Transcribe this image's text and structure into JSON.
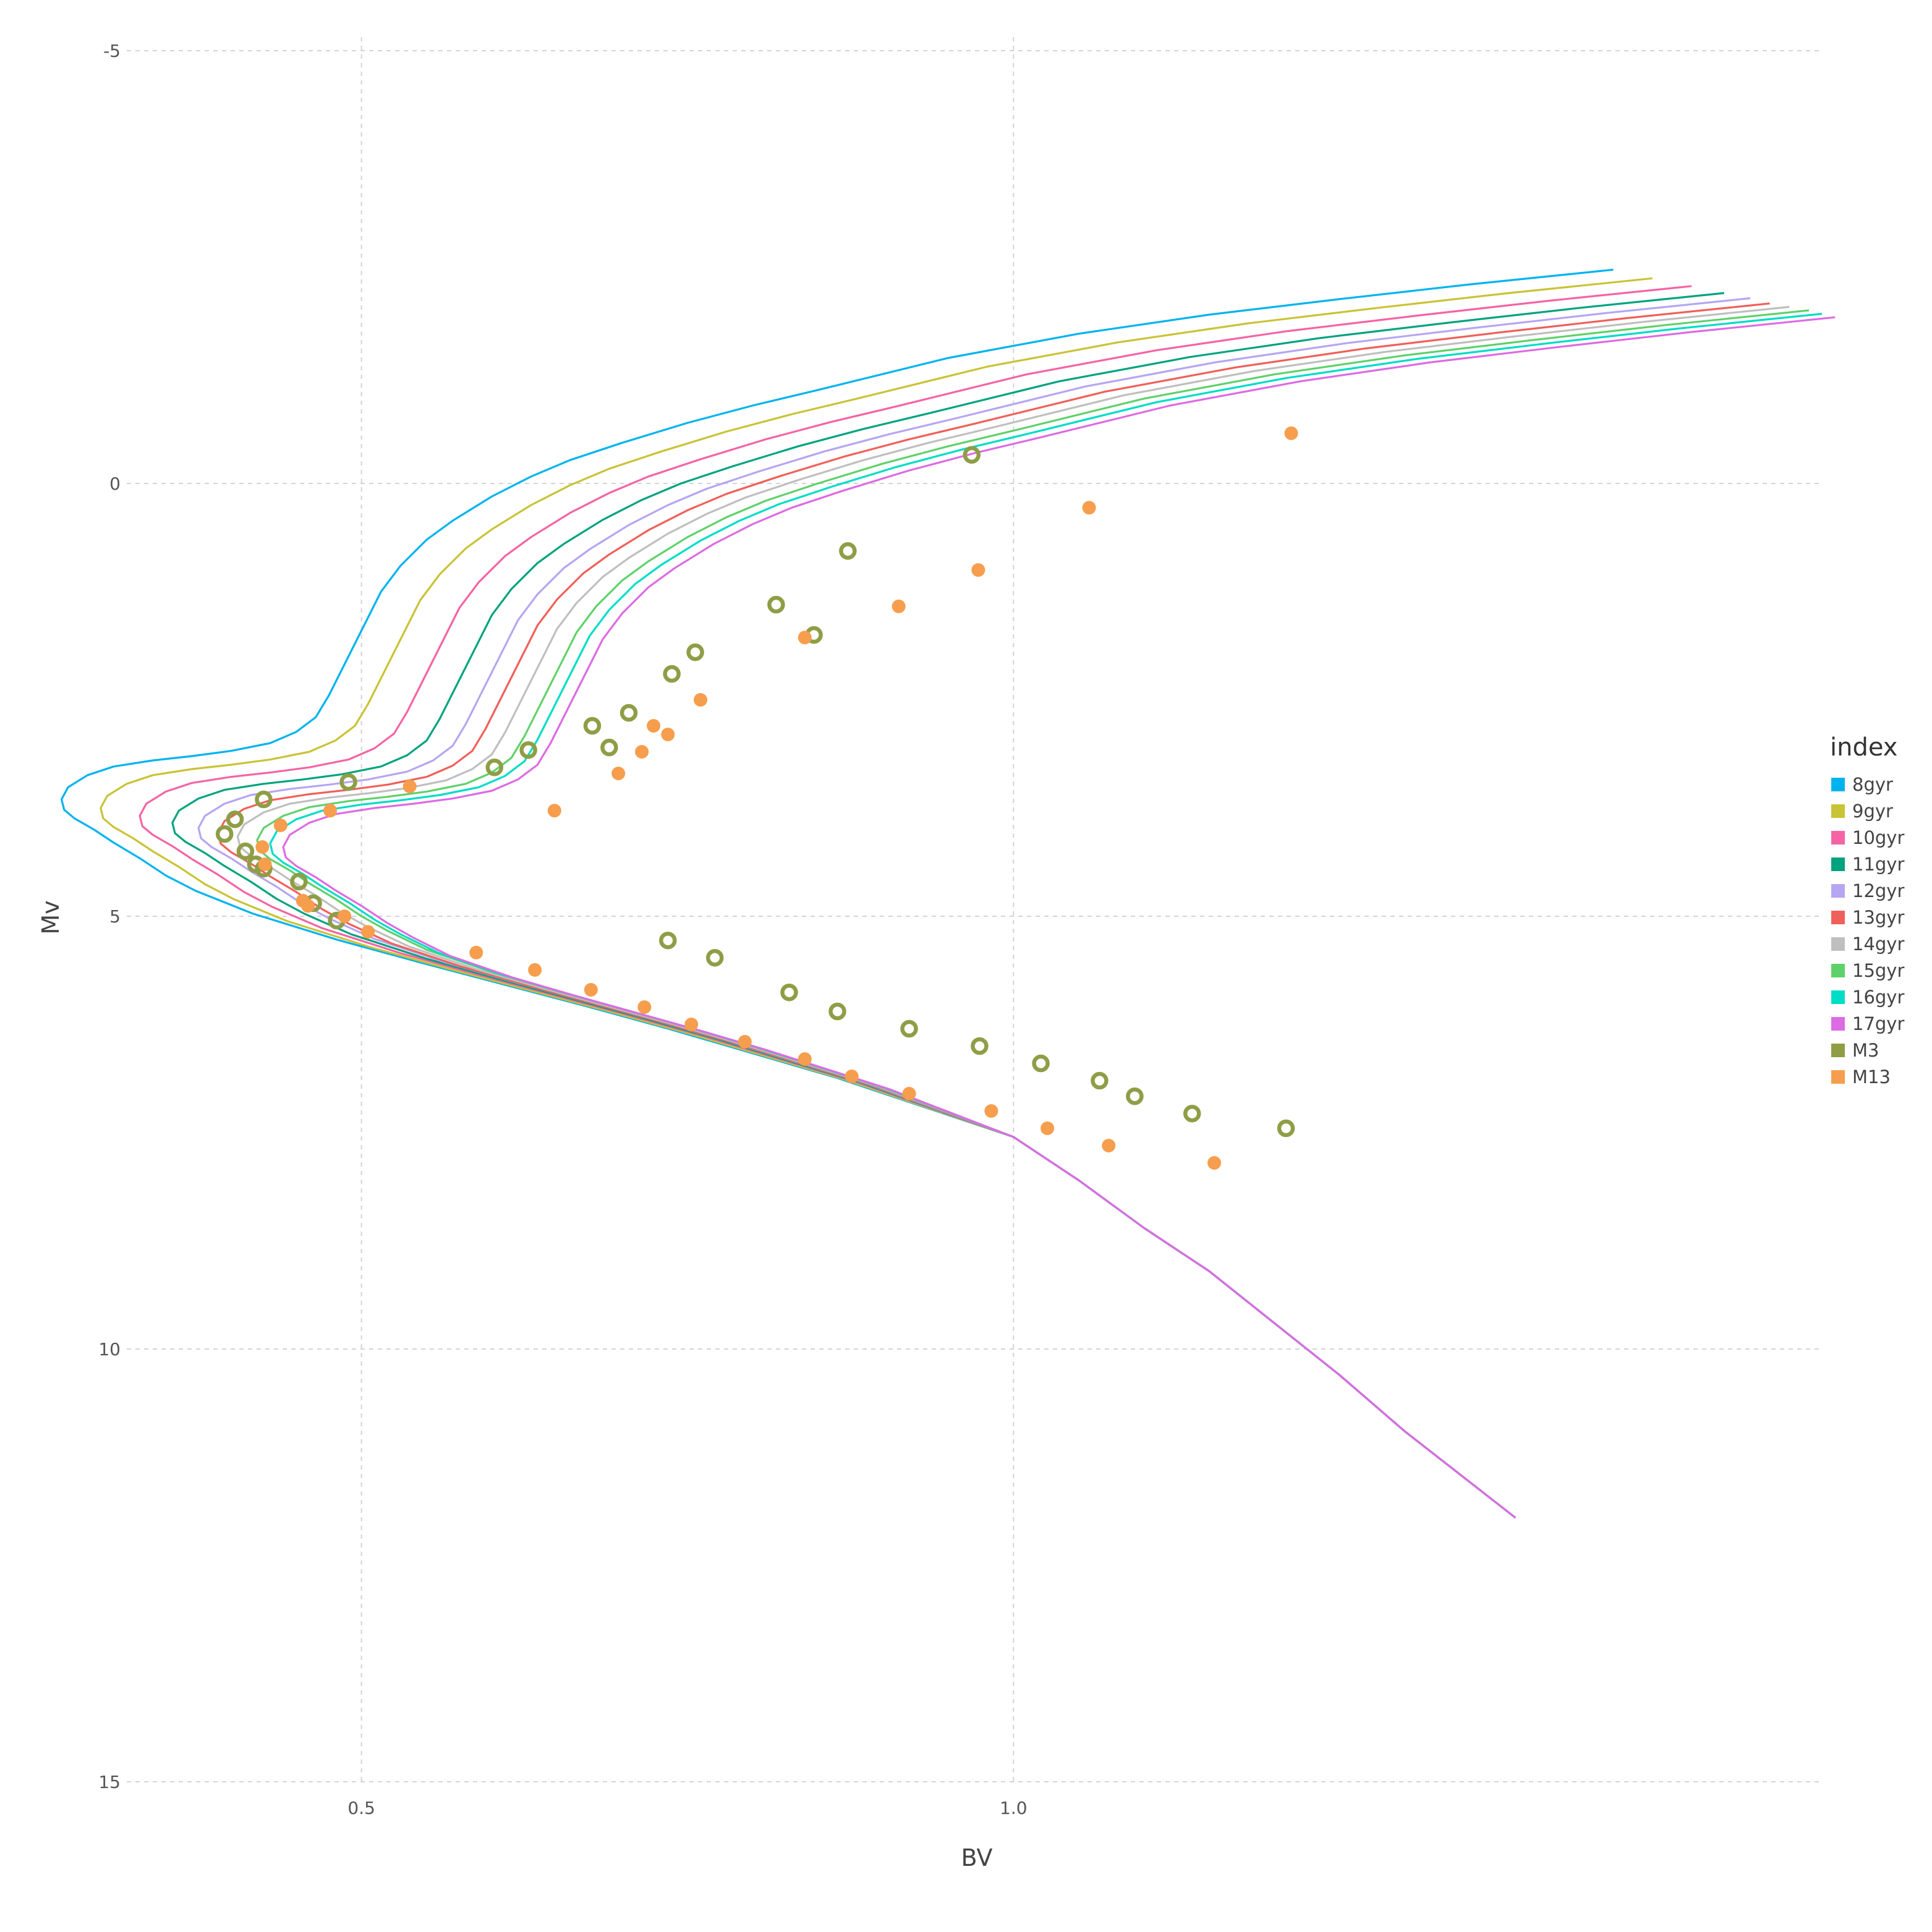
{
  "chart_data": {
    "type": "scatter",
    "xlabel": "BV",
    "ylabel": "Mv",
    "xlim": [
      0.32,
      1.62
    ],
    "ylim": [
      -5,
      15
    ],
    "y_inverted": true,
    "x_ticks": [
      {
        "value": 0.5,
        "label": "0.5"
      },
      {
        "value": 1.0,
        "label": "1.0"
      }
    ],
    "y_ticks": [
      {
        "value": -5,
        "label": "-5"
      },
      {
        "value": 0,
        "label": "0"
      },
      {
        "value": 5,
        "label": "5"
      },
      {
        "value": 10,
        "label": "10"
      },
      {
        "value": 15,
        "label": "15"
      }
    ],
    "grid": true,
    "legend": {
      "title": "index",
      "placement": "right"
    },
    "series": [
      {
        "name": "8gyr",
        "kind": "line",
        "color": "#00b3ef",
        "x_offset": -0.15,
        "y_offset": -0.35
      },
      {
        "name": "9gyr",
        "kind": "line",
        "color": "#c9c336",
        "x_offset": -0.12,
        "y_offset": -0.25
      },
      {
        "name": "10gyr",
        "kind": "line",
        "color": "#f464a4",
        "x_offset": -0.09,
        "y_offset": -0.16
      },
      {
        "name": "11gyr",
        "kind": "line",
        "color": "#00a37e",
        "x_offset": -0.065,
        "y_offset": -0.08
      },
      {
        "name": "12gyr",
        "kind": "line",
        "color": "#b6a6f2",
        "x_offset": -0.045,
        "y_offset": -0.02
      },
      {
        "name": "13gyr",
        "kind": "line",
        "color": "#f0605a",
        "x_offset": -0.03,
        "y_offset": 0.04
      },
      {
        "name": "14gyr",
        "kind": "line",
        "color": "#bfbfbf",
        "x_offset": -0.015,
        "y_offset": 0.08
      },
      {
        "name": "15gyr",
        "kind": "line",
        "color": "#5fd16b",
        "x_offset": 0.0,
        "y_offset": 0.12
      },
      {
        "name": "16gyr",
        "kind": "line",
        "color": "#00ddc6",
        "x_offset": 0.01,
        "y_offset": 0.16
      },
      {
        "name": "17gyr",
        "kind": "line",
        "color": "#dd6be3",
        "x_offset": 0.02,
        "y_offset": 0.2
      },
      {
        "name": "M3",
        "kind": "points",
        "color": "#8f9e46",
        "x": [
          0.395,
          0.411,
          0.403,
          0.425,
          0.419,
          0.425,
          0.452,
          0.463,
          0.481,
          0.49,
          0.602,
          0.628,
          0.705,
          0.677,
          0.738,
          0.818,
          0.873,
          0.968,
          0.756,
          0.847,
          0.69,
          0.735,
          0.771,
          0.828,
          0.865,
          0.92,
          0.974,
          1.021,
          1.066,
          1.093,
          1.137,
          1.209
        ],
        "y": [
          4.05,
          4.25,
          3.88,
          3.65,
          4.4,
          4.45,
          4.6,
          4.85,
          5.05,
          3.45,
          3.28,
          3.08,
          2.65,
          2.8,
          2.2,
          1.4,
          0.78,
          -0.33,
          1.95,
          1.75,
          3.05,
          5.28,
          5.48,
          5.88,
          6.1,
          6.3,
          6.5,
          6.7,
          6.9,
          7.08,
          7.28,
          7.45
        ]
      },
      {
        "name": "M13",
        "kind": "points",
        "color": "#f69e4d",
        "x": [
          0.424,
          0.426,
          0.438,
          0.476,
          0.455,
          0.459,
          0.487,
          0.505,
          0.537,
          0.588,
          0.648,
          0.697,
          0.715,
          0.724,
          0.735,
          0.76,
          0.84,
          0.912,
          0.973,
          1.058,
          1.213,
          0.633,
          0.676,
          0.717,
          0.753,
          0.794,
          0.84,
          0.876,
          0.92,
          0.983,
          1.026,
          1.073,
          1.154
        ],
        "y": [
          4.2,
          4.4,
          3.95,
          3.78,
          4.82,
          4.88,
          5.0,
          5.18,
          3.5,
          5.42,
          3.78,
          3.35,
          3.1,
          2.8,
          2.9,
          2.5,
          1.78,
          1.42,
          1.0,
          0.28,
          -0.58,
          5.62,
          5.85,
          6.05,
          6.25,
          6.45,
          6.65,
          6.85,
          7.05,
          7.25,
          7.45,
          7.65,
          7.85
        ]
      }
    ]
  }
}
